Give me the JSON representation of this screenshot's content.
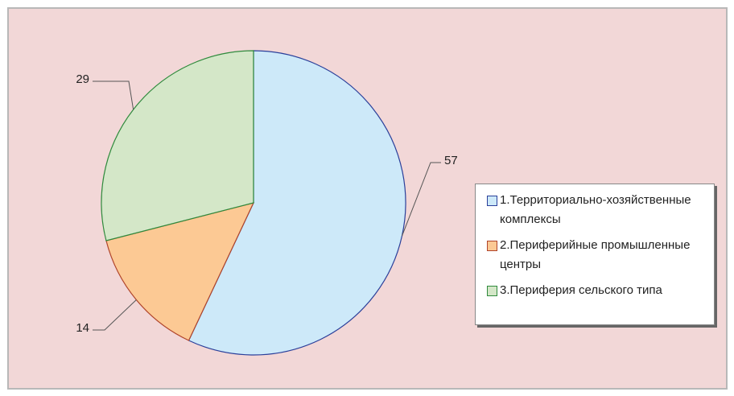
{
  "chart_data": {
    "type": "pie",
    "categories": [
      "1.Территориально-хозяйственные комплексы",
      "2.Периферийные промышленные центры",
      "3.Периферия сельского типа"
    ],
    "values": [
      57,
      14,
      29
    ],
    "colors": [
      "#cde9f9",
      "#fcc994",
      "#d4e7c8"
    ],
    "edge_colors": [
      "#2a3f9a",
      "#b0442a",
      "#2f8a3c"
    ],
    "legend": "right"
  }
}
